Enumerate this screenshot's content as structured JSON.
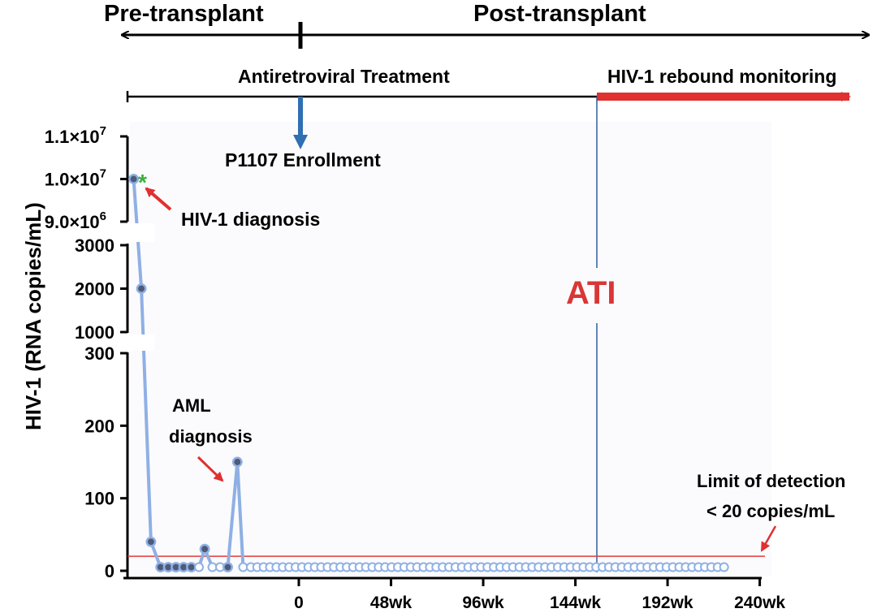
{
  "chart_data": {
    "type": "line",
    "title": "",
    "ylabel": "HIV-1 (RNA copies/mL)",
    "xlabel": "",
    "phases": {
      "pre": "Pre-transplant",
      "post": "Post-transplant",
      "art": "Antiretroviral Treatment",
      "rebound": "HIV-1 rebound monitoring",
      "enrollment": "P1107 Enrollment",
      "ati": "ATI"
    },
    "annotations": {
      "hiv_diagnosis": "HIV-1 diagnosis",
      "aml_line1": "AML",
      "aml_line2": "diagnosis",
      "lod_line1": "Limit of detection",
      "lod_line2": "< 20 copies/mL",
      "asterisk": "*"
    },
    "x_ticks": [
      "0",
      "48wk",
      "96wk",
      "144wk",
      "192wk",
      "240wk"
    ],
    "x_tick_values": [
      0,
      48,
      96,
      144,
      192,
      240
    ],
    "x_range": [
      -86,
      240
    ],
    "y_segments": [
      {
        "range": [
          9000000,
          11000000
        ],
        "ticks": [
          "1.1",
          "1.0",
          "9.0"
        ],
        "tick_values": [
          11000000,
          10000000,
          9000000
        ],
        "exponents": [
          "7",
          "7",
          "6"
        ],
        "mult": "×10"
      },
      {
        "range": [
          1000,
          3000
        ],
        "ticks": [
          "3000",
          "2000",
          "1000"
        ],
        "tick_values": [
          3000,
          2000,
          1000
        ]
      },
      {
        "range": [
          0,
          300
        ],
        "ticks": [
          "300",
          "200",
          "100",
          "0"
        ],
        "tick_values": [
          300,
          200,
          100,
          0
        ]
      }
    ],
    "limit_of_detection": 20,
    "ati_week": 156,
    "series": [
      {
        "name": "HIV-1 RNA",
        "detected": [
          {
            "x": -86,
            "y": 10000000
          },
          {
            "x": -82,
            "y": 2000
          },
          {
            "x": -77,
            "y": 40
          },
          {
            "x": -72,
            "y": 5
          },
          {
            "x": -68,
            "y": 5
          },
          {
            "x": -64,
            "y": 5
          },
          {
            "x": -60,
            "y": 5
          },
          {
            "x": -56,
            "y": 5
          },
          {
            "x": -49,
            "y": 30
          },
          {
            "x": -37,
            "y": 5
          },
          {
            "x": -32,
            "y": 150
          }
        ],
        "undetected": [
          {
            "x": -52,
            "y": 5
          },
          {
            "x": -45,
            "y": 5
          },
          {
            "x": -41,
            "y": 5
          },
          {
            "x": -29,
            "y": 5
          }
        ],
        "undetected_regular": {
          "start": -25,
          "step": 3.33,
          "end": 224,
          "y": 5
        }
      }
    ]
  }
}
